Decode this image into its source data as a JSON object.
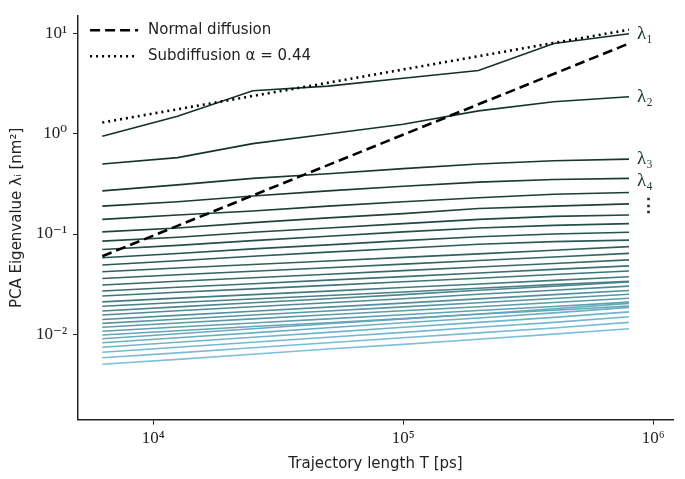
{
  "chart_data": {
    "type": "line",
    "x_label": "Trajectory length T [ps]",
    "y_label": "PCA Eigenvalue λᵢ [nm²]",
    "log": true,
    "grid": false,
    "legend": "upper left",
    "xlim": [
      5000,
      1200000
    ],
    "xticks": [
      {
        "value": 10000,
        "label": "10⁴"
      },
      {
        "value": 100000,
        "label": "10⁵"
      },
      {
        "value": 1000000,
        "label": "10⁶"
      }
    ],
    "ylim": [
      0.0014,
      15
    ],
    "yticks": [
      {
        "value": 0.01,
        "label": "10⁻²"
      },
      {
        "value": 0.1,
        "label": "10⁻¹"
      },
      {
        "value": 1,
        "label": "10⁰"
      },
      {
        "value": 10,
        "label": "10¹"
      }
    ],
    "annotations": [
      "⋮"
    ],
    "x": [
      6250,
      12500,
      25000,
      50000,
      100000,
      200000,
      400000,
      800000
    ],
    "series": [
      {
        "name": "Normal diffusion",
        "color": "#000000",
        "line_style": "dashed",
        "x": [
          6250,
          800000
        ],
        "values": [
          0.06,
          8.0
        ]
      },
      {
        "name": "Subdiffusion α = 0.44",
        "color": "#000000",
        "line_style": "dotted",
        "x": [
          6250,
          800000
        ],
        "values": [
          1.3,
          11
        ]
      },
      {
        "name": "λ₁",
        "color": "#14302a",
        "line_style": "solid",
        "values": [
          0.95,
          1.5,
          2.7,
          3.0,
          3.6,
          4.3,
          8.0,
          10.0
        ]
      },
      {
        "name": "λ₂",
        "color": "#15332d",
        "line_style": "solid",
        "values": [
          0.5,
          0.58,
          0.8,
          1.0,
          1.25,
          1.7,
          2.1,
          2.35
        ]
      },
      {
        "name": "λ₃",
        "color": "#173630",
        "line_style": "solid",
        "values": [
          0.27,
          0.31,
          0.36,
          0.4,
          0.45,
          0.5,
          0.54,
          0.56
        ]
      },
      {
        "name": "λ₄",
        "color": "#193a34",
        "line_style": "solid",
        "values": [
          0.19,
          0.21,
          0.24,
          0.27,
          0.3,
          0.33,
          0.35,
          0.36
        ]
      },
      {
        "color": "#1b3e38",
        "line_style": "solid",
        "values": [
          0.14,
          0.155,
          0.17,
          0.19,
          0.21,
          0.23,
          0.25,
          0.26
        ]
      },
      {
        "color": "#1e433d",
        "line_style": "solid",
        "values": [
          0.105,
          0.115,
          0.13,
          0.145,
          0.16,
          0.18,
          0.19,
          0.2
        ]
      },
      {
        "color": "#214842",
        "line_style": "solid",
        "values": [
          0.085,
          0.093,
          0.104,
          0.115,
          0.127,
          0.14,
          0.15,
          0.155
        ]
      },
      {
        "color": "#244e48",
        "line_style": "solid",
        "values": [
          0.07,
          0.077,
          0.086,
          0.095,
          0.105,
          0.115,
          0.122,
          0.127
        ]
      },
      {
        "color": "#28544f",
        "line_style": "solid",
        "values": [
          0.058,
          0.064,
          0.071,
          0.078,
          0.086,
          0.094,
          0.1,
          0.104
        ]
      },
      {
        "color": "#2c5a56",
        "line_style": "solid",
        "values": [
          0.049,
          0.054,
          0.06,
          0.066,
          0.072,
          0.079,
          0.084,
          0.087
        ]
      },
      {
        "color": "#305f5d",
        "line_style": "solid",
        "values": [
          0.042,
          0.0458,
          0.0496,
          0.0538,
          0.0584,
          0.0634,
          0.0689,
          0.0748
        ]
      },
      {
        "color": "#346564",
        "line_style": "solid",
        "values": [
          0.036,
          0.0392,
          0.0425,
          0.0461,
          0.05,
          0.0544,
          0.059,
          0.0641
        ]
      },
      {
        "color": "#386a6b",
        "line_style": "solid",
        "values": [
          0.031,
          0.0338,
          0.0366,
          0.0397,
          0.0431,
          0.0468,
          0.0508,
          0.0552
        ]
      },
      {
        "color": "#3c7072",
        "line_style": "solid",
        "values": [
          0.027,
          0.0294,
          0.0319,
          0.0346,
          0.0375,
          0.0408,
          0.0443,
          0.0481
        ]
      },
      {
        "color": "#407579",
        "line_style": "solid",
        "values": [
          0.024,
          0.0262,
          0.0283,
          0.0307,
          0.0334,
          0.0362,
          0.0394,
          0.0427
        ]
      },
      {
        "color": "#447b80",
        "line_style": "solid",
        "values": [
          0.021,
          0.0229,
          0.0248,
          0.0269,
          0.0292,
          0.0317,
          0.0344,
          0.0374
        ]
      },
      {
        "color": "#488087",
        "line_style": "solid",
        "values": [
          0.019,
          0.0207,
          0.0224,
          0.0243,
          0.0264,
          0.0287,
          0.0312,
          0.0338
        ]
      },
      {
        "color": "#4c868e",
        "line_style": "solid",
        "values": [
          0.017,
          0.0187,
          0.0206,
          0.0226,
          0.0248,
          0.0274,
          0.0301,
          0.0332
        ]
      },
      {
        "color": "#508b95",
        "line_style": "solid",
        "values": [
          0.0155,
          0.0171,
          0.0188,
          0.0206,
          0.0226,
          0.025,
          0.0274,
          0.0302
        ]
      },
      {
        "color": "#54909c",
        "line_style": "solid",
        "values": [
          0.014,
          0.0154,
          0.0169,
          0.0186,
          0.0204,
          0.0225,
          0.0248,
          0.0273
        ]
      },
      {
        "color": "#5896a3",
        "line_style": "solid",
        "values": [
          0.0128,
          0.0141,
          0.0155,
          0.017,
          0.0187,
          0.0206,
          0.0227,
          0.025
        ]
      },
      {
        "color": "#5c9baa",
        "line_style": "solid",
        "values": [
          0.0117,
          0.0129,
          0.0142,
          0.0156,
          0.0171,
          0.0188,
          0.0207,
          0.0228
        ]
      },
      {
        "color": "#60a0b1",
        "line_style": "solid",
        "values": [
          0.0107,
          0.0118,
          0.0129,
          0.0142,
          0.0156,
          0.0172,
          0.0189,
          0.0209
        ]
      },
      {
        "color": "#64a5b8",
        "line_style": "solid",
        "values": [
          0.0098,
          0.0108,
          0.0119,
          0.013,
          0.0143,
          0.0158,
          0.0173,
          0.0191
        ]
      },
      {
        "color": "#68aabe",
        "line_style": "solid",
        "values": [
          0.009,
          0.0101,
          0.0113,
          0.0127,
          0.0142,
          0.0159,
          0.0179,
          0.0203
        ]
      },
      {
        "color": "#6cafc4",
        "line_style": "solid",
        "values": [
          0.0082,
          0.0092,
          0.0103,
          0.0116,
          0.013,
          0.0145,
          0.0163,
          0.0185
        ]
      },
      {
        "color": "#70b4ca",
        "line_style": "solid",
        "values": [
          0.0074,
          0.0083,
          0.0093,
          0.0104,
          0.0117,
          0.0131,
          0.0147,
          0.0167
        ]
      },
      {
        "color": "#74b8d0",
        "line_style": "solid",
        "values": [
          0.0066,
          0.0074,
          0.0083,
          0.0093,
          0.0104,
          0.0117,
          0.0131,
          0.0149
        ]
      },
      {
        "color": "#78bcd5",
        "line_style": "solid",
        "values": [
          0.0058,
          0.0065,
          0.0073,
          0.0082,
          0.0092,
          0.0103,
          0.0115,
          0.0131
        ]
      },
      {
        "color": "#7cc0da",
        "line_style": "solid",
        "values": [
          0.005,
          0.0056,
          0.0063,
          0.0071,
          0.0079,
          0.0089,
          0.01,
          0.0113
        ]
      }
    ]
  }
}
